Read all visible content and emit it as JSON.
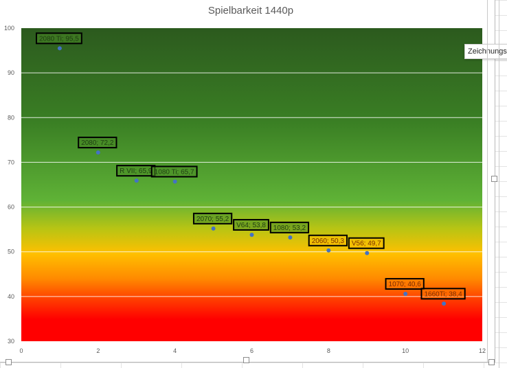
{
  "chart_data": {
    "type": "scatter",
    "title": "Spielbarkeit 1440p",
    "xlim": [
      0,
      12
    ],
    "ylim": [
      30,
      100
    ],
    "xticks": [
      0,
      2,
      4,
      6,
      8,
      10,
      12
    ],
    "yticks": [
      30,
      40,
      50,
      60,
      70,
      80,
      90,
      100
    ],
    "grid": "horizontal",
    "background": "vertical gradient: dark green (top) to green, yellow, orange, red (bottom)",
    "point_color": "#4472c4",
    "points": [
      {
        "x": 1,
        "y": 95.5,
        "label": "2080 Ti; 95,5"
      },
      {
        "x": 2,
        "y": 72.2,
        "label": "2080; 72,2"
      },
      {
        "x": 3,
        "y": 65.9,
        "label": "R VII; 65,9"
      },
      {
        "x": 4,
        "y": 65.7,
        "label": "1080 Ti; 65,7"
      },
      {
        "x": 5,
        "y": 55.2,
        "label": "2070; 55,2"
      },
      {
        "x": 6,
        "y": 53.8,
        "label": "V64; 53,8"
      },
      {
        "x": 7,
        "y": 53.2,
        "label": "1080; 53,2"
      },
      {
        "x": 8,
        "y": 50.3,
        "label": "2060; 50,3"
      },
      {
        "x": 9,
        "y": 49.7,
        "label": "V56; 49,7"
      },
      {
        "x": 10,
        "y": 40.6,
        "label": "1070; 40,6"
      },
      {
        "x": 11,
        "y": 38.4,
        "label": "1660Ti; 38,4"
      }
    ]
  },
  "tooltip": {
    "text": "Zeichnungsfläche"
  }
}
